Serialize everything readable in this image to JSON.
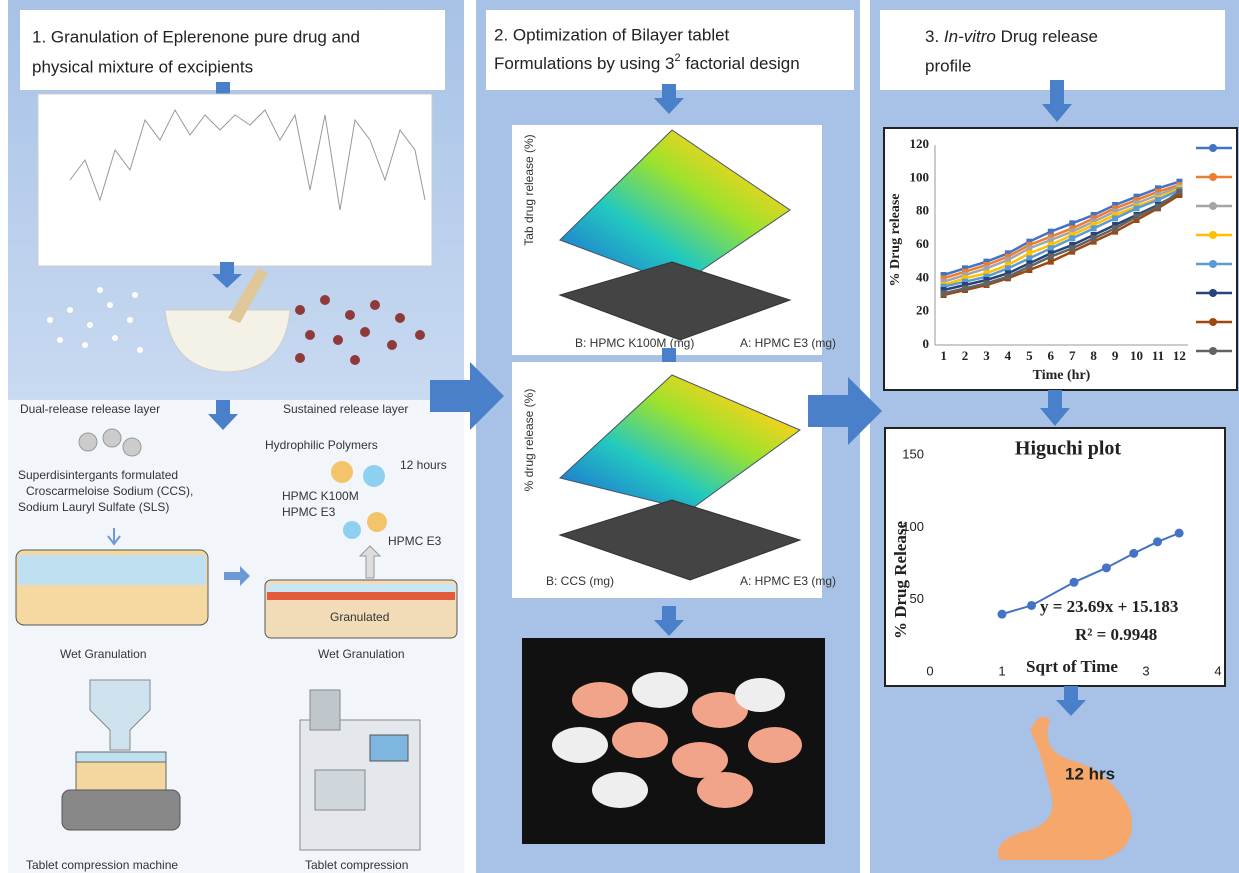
{
  "panel1": {
    "title_line1": "1. Granulation of Eplerenone pure drug and",
    "title_line2": "physical mixture of excipients",
    "layer_left": "Dual-release release layer",
    "layer_right": "Sustained release layer",
    "superdisintegrants": [
      "Superdisintergants formulated",
      "Croscarmeloise Sodium (CCS),",
      "Sodium Lauryl Sulfate (SLS)"
    ],
    "polymers": "Hydrophilic Polymers",
    "duration": "12 hours",
    "polymer_names": [
      "HPMC K100M",
      "HPMC E3"
    ],
    "polymer_e3": "HPMC E3",
    "granulated": "Granulated",
    "wet_left": "Wet Granulation",
    "wet_right": "Wet Granulation",
    "machine_left": "Tablet compression machine",
    "machine_right": "Tablet compression"
  },
  "panel2": {
    "title_line1": "2. Optimization of Bilayer tablet",
    "title_line2": "Formulations by using 3",
    "title_sup": "2",
    "title_line2_end": " factorial design",
    "plot1": {
      "z_label": "Tab drug release (%)",
      "x_label": "B: HPMC K100M (mg)",
      "y_label": "A: HPMC E3 (mg)"
    },
    "plot2": {
      "z_label": "% drug release (%)",
      "x_label": "B: CCS (mg)",
      "y_label": "A: HPMC E3 (mg)"
    }
  },
  "panel3": {
    "title_num": "3. ",
    "title_italic": "In-vitro",
    "title_rest": " Drug release",
    "title_line2": "profile",
    "stomach": "12 hrs"
  },
  "release_chart": {
    "type": "line",
    "y_label": "% Drug release",
    "x_label": "Time (hr)",
    "x": [
      1,
      2,
      3,
      4,
      5,
      6,
      7,
      8,
      9,
      10,
      11,
      12
    ],
    "xlim": [
      0.6,
      12.4
    ],
    "xticks": [
      1,
      2,
      3,
      4,
      5,
      6,
      7,
      8,
      9,
      10,
      11,
      12
    ],
    "ylim": [
      0,
      120
    ],
    "yticks": [
      0,
      20,
      40,
      60,
      80,
      100,
      120
    ],
    "series": [
      {
        "color": "#4472c4",
        "values": [
          42,
          46,
          50,
          55,
          62,
          68,
          73,
          78,
          84,
          89,
          94,
          98
        ]
      },
      {
        "color": "#ed7d31",
        "values": [
          40,
          44,
          48,
          53,
          60,
          65,
          70,
          76,
          82,
          87,
          92,
          96
        ]
      },
      {
        "color": "#a5a5a5",
        "values": [
          38,
          42,
          46,
          51,
          58,
          63,
          68,
          74,
          80,
          85,
          90,
          95
        ]
      },
      {
        "color": "#ffc000",
        "values": [
          36,
          40,
          43,
          48,
          55,
          60,
          66,
          72,
          78,
          83,
          88,
          94
        ]
      },
      {
        "color": "#5b9bd5",
        "values": [
          35,
          38,
          41,
          46,
          52,
          58,
          64,
          70,
          76,
          82,
          87,
          93
        ]
      },
      {
        "color": "#264478",
        "values": [
          33,
          36,
          39,
          43,
          49,
          55,
          60,
          66,
          72,
          78,
          84,
          91
        ]
      },
      {
        "color": "#9e480e",
        "values": [
          30,
          33,
          36,
          40,
          45,
          50,
          56,
          62,
          68,
          75,
          82,
          90
        ]
      },
      {
        "color": "#636363",
        "values": [
          31,
          34,
          37,
          41,
          47,
          53,
          58,
          64,
          70,
          77,
          83,
          92
        ]
      }
    ]
  },
  "higuchi_chart": {
    "type": "scatter",
    "title": "Higuchi plot",
    "y_label": "% Drug Release",
    "x_label": "Sqrt of Time",
    "equation": "y = 23.69x + 15.183",
    "r_squared": "R² = 0.9948",
    "x": [
      1,
      1.41,
      2,
      2.45,
      2.83,
      3.16,
      3.46
    ],
    "values": [
      40,
      46,
      62,
      72,
      82,
      90,
      96
    ],
    "color": "#4472c4",
    "xlim": [
      0,
      4
    ],
    "xticks": [
      0,
      1,
      3,
      4
    ],
    "ylim": [
      0,
      150
    ],
    "yticks": [
      50,
      100,
      150
    ]
  }
}
